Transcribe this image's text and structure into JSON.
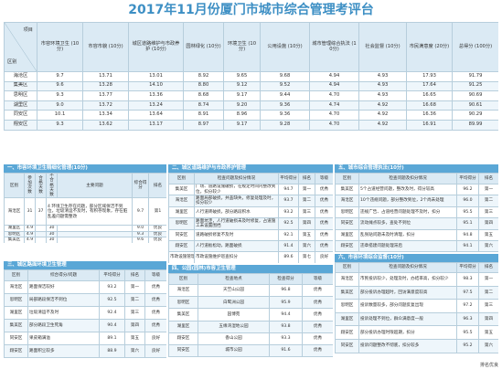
{
  "title": "2017年11月份厦门市城市综合管理考评台",
  "main": {
    "corner_top": "项目",
    "corner_bottom": "区别",
    "headers": [
      "市容环境卫生\n(10分)",
      "市容市貌\n(10分)",
      "城区道路维护与市政养护\n(10分)",
      "园林绿化\n(10分)",
      "环境卫生\n(10分)",
      "公用设施\n(10分)",
      "城市管理综合执法\n(10分)",
      "社会监督\n(10分)",
      "市民满意度\n(20分)",
      "总得分\n(100分)"
    ],
    "rows": [
      [
        "海沧区",
        "9.7",
        "13.71",
        "13.01",
        "8.92",
        "9.65",
        "9.68",
        "4.94",
        "4.93",
        "17.93",
        "91.79"
      ],
      [
        "集美区",
        "9.6",
        "13.28",
        "14.10",
        "8.80",
        "9.12",
        "9.52",
        "4.94",
        "4.93",
        "17.64",
        "91.25"
      ],
      [
        "思明区",
        "9.3",
        "13.77",
        "13.36",
        "8.68",
        "9.17",
        "9.44",
        "4.70",
        "4.93",
        "16.65",
        "90.69"
      ],
      [
        "湖里区",
        "9.0",
        "13.72",
        "13.24",
        "8.74",
        "9.20",
        "9.36",
        "4.74",
        "4.92",
        "16.68",
        "90.61"
      ],
      [
        "同安区",
        "10.1",
        "13.34",
        "13.64",
        "8.91",
        "8.96",
        "9.36",
        "4.70",
        "4.92",
        "16.36",
        "90.29"
      ],
      [
        "翔安区",
        "9.3",
        "13.62",
        "13.17",
        "8.97",
        "9.17",
        "9.28",
        "4.70",
        "4.92",
        "16.91",
        "89.99"
      ]
    ]
  },
  "sec1": {
    "band": "一、市容环境卫生精细化管理(10分)",
    "headers": [
      "区别",
      "参加次数",
      "合格天数",
      "不合格天数",
      "主要问题",
      "综合得分",
      "排名"
    ],
    "block_name": "海沧区",
    "block_val1": "31",
    "block_val2": "37",
    "block_problem": "4\n环境卫生存在问题，部分区域保洁不到位，垃圾清运不及时，有积存现象，存在脏乱差问题需整改",
    "block_score": "9.7",
    "block_rank": "第1",
    "rows": [
      [
        "湖里区",
        "4.9",
        "",
        "30",
        "",
        "9.0",
        "优良"
      ],
      [
        "思明区",
        "4.9",
        "",
        "30",
        "",
        "9.3",
        "优良"
      ],
      [
        "集美区",
        "4.9",
        "",
        "30",
        "",
        "9.6",
        "优良"
      ],
      [
        "同安区",
        "4.9",
        "",
        "30",
        "",
        "10.1",
        "优良"
      ],
      [
        "翔安区",
        "4.9",
        "",
        "30",
        "",
        "9.3",
        "优良"
      ]
    ]
  },
  "sec2": {
    "band": "二、城区道路维护与市政养护管理",
    "headers": [
      "区别",
      "检查问题及扣分情况",
      "平均得分",
      "排名",
      "等级"
    ],
    "rows": [
      [
        "集美区",
        "广场、道路设施破损，在规定时间内整改到位，扣分较少",
        "94.7",
        "第一",
        "优秀"
      ],
      [
        "海沧区",
        "路面局部破损，井盖缺失，修复处理及时，扣分较少",
        "93.7",
        "第二",
        "优秀"
      ],
      [
        "湖里区",
        "人行道砖破损，部分路段积水",
        "93.2",
        "第三",
        "优秀"
      ],
      [
        "思明区",
        "路面坑洼，人行道破损未及时修复，占道施工未设置围挡",
        "92.5",
        "第四",
        "优秀"
      ],
      [
        "同安区",
        "道路破损修复不及时",
        "92.1",
        "第五",
        "优秀"
      ],
      [
        "翔安区",
        "人行道板松动，路面破损",
        "91.4",
        "第六",
        "优秀"
      ],
      [
        "市政设施管理",
        "市政设施维护巡查扣分",
        "89.6",
        "第七",
        "良好"
      ]
    ]
  },
  "sec3": {
    "band": "三、城区路面环境卫生管理",
    "headers": [
      "区别",
      "综合得分/问题",
      "平均得分",
      "排名",
      "等级"
    ],
    "rows": [
      [
        "海沧区",
        "路面保洁较好",
        "93.2",
        "第一",
        "优秀"
      ],
      [
        "思明区",
        "局部路段保洁不到位",
        "92.5",
        "第二",
        "优秀"
      ],
      [
        "湖里区",
        "垃圾清运不及时",
        "92.4",
        "第三",
        "优秀"
      ],
      [
        "集美区",
        "部分路段卫生死角",
        "90.4",
        "第四",
        "优秀"
      ],
      [
        "同安区",
        "果皮箱满溢",
        "89.1",
        "第五",
        "良好"
      ],
      [
        "翔安区",
        "路面积尘较多",
        "88.9",
        "第六",
        "良好"
      ]
    ]
  },
  "sec4": {
    "band": "四、公园(园林)市容卫生管理",
    "headers": [
      "区别",
      "检查地点",
      "检查得分",
      "等级"
    ],
    "rows": [
      [
        "海沧区",
        "天竺山公园",
        "96.8",
        "优秀"
      ],
      [
        "思明区",
        "白鹭洲公园",
        "95.9",
        "优秀"
      ],
      [
        "集美区",
        "园博苑",
        "94.4",
        "优秀"
      ],
      [
        "湖里区",
        "五缘湾湿地公园",
        "93.8",
        "优秀"
      ],
      [
        "翔安区",
        "香山公园",
        "93.3",
        "优秀"
      ],
      [
        "同安区",
        "城市公园",
        "91.6",
        "优秀"
      ]
    ]
  },
  "sec5": {
    "band": "五、城市综合管理执法(10分)",
    "headers": [
      "区别",
      "检查问题及扣分情况",
      "平均得分",
      "排名"
    ],
    "rows": [
      [
        "集美区",
        "5个占道经营问题，整改及时，得分较高",
        "96.2",
        "第一"
      ],
      [
        "海沧区",
        "10个违规问题，部分整改到位，2个尚未处理",
        "96.0",
        "第二"
      ],
      [
        "思明区",
        "违规广告、占道经营问题处理不及时，扣分",
        "95.5",
        "第三"
      ],
      [
        "同安区",
        "流动摊点较多，查处不到位",
        "95.1",
        "第四"
      ],
      [
        "湖里区",
        "乱张贴问题未及时清理，扣分",
        "94.8",
        "第五"
      ],
      [
        "翔安区",
        "违章搭建问题处理滞后",
        "94.1",
        "第六"
      ]
    ]
  },
  "sec6": {
    "band": "六、市容环境综合监督(10分)",
    "headers": [
      "区别",
      "检查问题及扣分情况",
      "平均得分",
      "排名"
    ],
    "rows": [
      [
        "海沧区",
        "市民投诉较少，处理及时，办结率高，扣分较少",
        "98.3",
        "第一"
      ],
      [
        "集美区",
        "部分投诉办理超时，回访满意度较高",
        "97.5",
        "第二"
      ],
      [
        "思明区",
        "投诉数量较多，部分问题反复出现",
        "97.2",
        "第三"
      ],
      [
        "湖里区",
        "投诉处理不到位，群众满意度一般",
        "96.3",
        "第四"
      ],
      [
        "翔安区",
        "部分投诉办理时限超期，扣分",
        "95.5",
        "第五"
      ],
      [
        "同安区",
        "投诉问题整改不彻底，扣分较多",
        "95.2",
        "第六"
      ]
    ]
  },
  "note": "排名优良"
}
